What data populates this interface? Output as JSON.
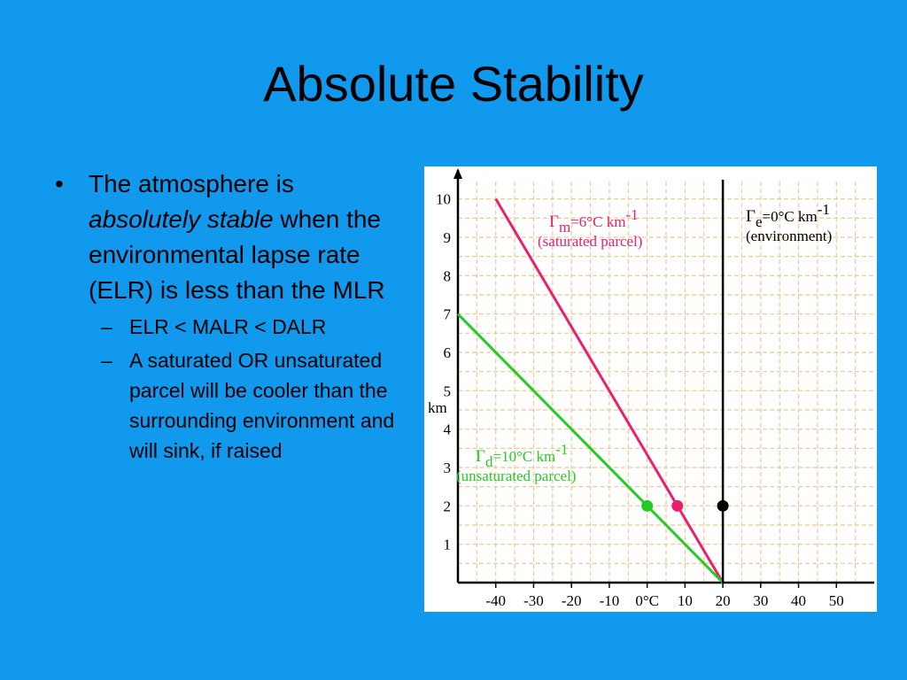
{
  "slide": {
    "title": "Absolute Stability",
    "bullet": {
      "marker": "•",
      "text_before": "The atmosphere is ",
      "emphasis": "absolutely stable",
      "text_after": " when the environmental lapse rate (ELR) is less than the MLR"
    },
    "sub_bullets": [
      {
        "marker": "–",
        "text": "ELR < MALR < DALR"
      },
      {
        "marker": "–",
        "text": "A saturated OR unsaturated parcel will be cooler than the surrounding environment and will sink, if raised"
      }
    ]
  },
  "chart_data": {
    "type": "line",
    "xlabel": "",
    "ylabel": "km",
    "xlim": [
      -50,
      60
    ],
    "ylim": [
      0,
      10.5
    ],
    "grid": true,
    "x_tick_labels": [
      "-40",
      "-30",
      "-20",
      "-10",
      "0°C",
      "10",
      "20",
      "30",
      "40",
      "50"
    ],
    "x_ticks": [
      -40,
      -30,
      -20,
      -10,
      0,
      10,
      20,
      30,
      40,
      50
    ],
    "y_ticks": [
      1,
      2,
      3,
      4,
      5,
      6,
      7,
      8,
      9,
      10
    ],
    "y_tick_labels": [
      "1",
      "2",
      "3",
      "4",
      "5",
      "6",
      "7",
      "8",
      "9",
      "10"
    ],
    "colors": {
      "moist": "#e8206e",
      "dry": "#22cc22",
      "environment": "#000000",
      "grid": "#f0c890"
    },
    "series": [
      {
        "key": "moist",
        "x": [
          20,
          -40
        ],
        "y": [
          0,
          10
        ]
      },
      {
        "key": "dry",
        "x": [
          20,
          -50
        ],
        "y": [
          0,
          7
        ]
      },
      {
        "key": "environment",
        "x": [
          20,
          20
        ],
        "y": [
          0,
          10.5
        ]
      }
    ],
    "points": [
      {
        "key": "dry",
        "x": 0,
        "y": 2
      },
      {
        "key": "moist",
        "x": 8,
        "y": 2
      },
      {
        "key": "environment",
        "x": 20,
        "y": 2
      }
    ],
    "annotations": {
      "moist": {
        "symbol": "Γ",
        "sub": "m",
        "text": "=6°C km",
        "sup": "-1",
        "note": "(saturated parcel)"
      },
      "environment": {
        "symbol": "Γ",
        "sub": "e",
        "text": "=0°C km",
        "sup": "-1",
        "note": "(environment)"
      },
      "dry": {
        "symbol": "Γ",
        "sub": "d",
        "text": "=10°C km",
        "sup": "-1",
        "note": "(unsaturated parcel)"
      }
    }
  }
}
